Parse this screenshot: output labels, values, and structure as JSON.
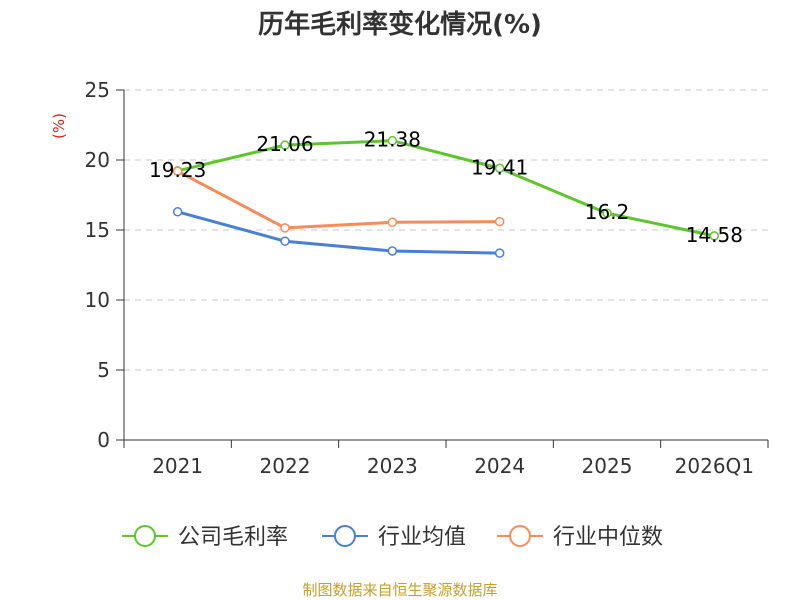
{
  "chart_data": {
    "type": "line",
    "title": "历年毛利率变化情况(%)",
    "unit_label": "(%)",
    "categories": [
      "2021",
      "2022",
      "2023",
      "2024",
      "2025",
      "2026Q1"
    ],
    "ylim": [
      0,
      25
    ],
    "yticks": [
      "0",
      "5",
      "10",
      "15",
      "20",
      "25"
    ],
    "ytick_values": [
      0,
      5,
      10,
      15,
      20,
      25
    ],
    "grid": true,
    "legend_position": "bottom",
    "series": [
      {
        "name": "公司毛利率",
        "color": "#5cc62b",
        "values": [
          19.23,
          21.06,
          21.38,
          19.41,
          16.2,
          14.58
        ],
        "labels": [
          "19.23",
          "21.06",
          "21.38",
          "19.41",
          "16.2",
          "14.58"
        ]
      },
      {
        "name": "行业均值",
        "color": "#4a7fd8",
        "values": [
          16.3,
          14.2,
          13.5,
          13.35,
          null,
          null
        ]
      },
      {
        "name": "行业中位数",
        "color": "#f58c5a",
        "values": [
          19.2,
          15.15,
          15.55,
          15.6,
          null,
          null
        ]
      }
    ],
    "source": "制图数据来自恒生聚源数据库"
  }
}
